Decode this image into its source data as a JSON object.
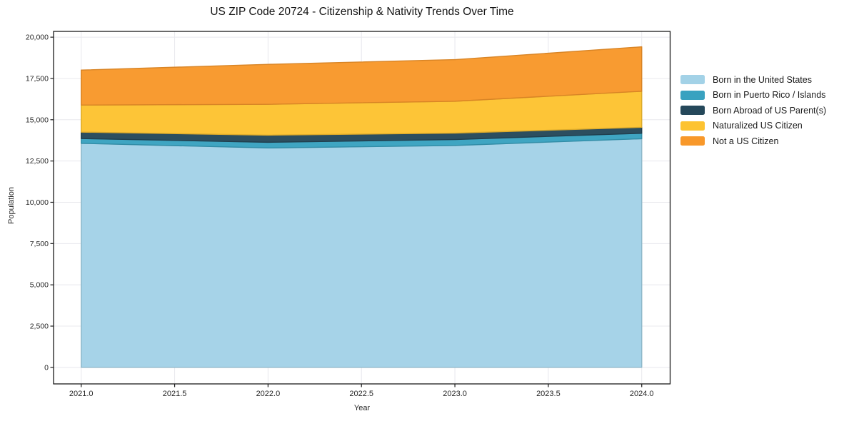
{
  "chart_data": {
    "type": "area",
    "stacked": true,
    "title": "US ZIP Code 20724 - Citizenship & Nativity Trends Over Time",
    "xlabel": "Year",
    "ylabel": "Population",
    "x": [
      2021,
      2022,
      2023,
      2024
    ],
    "series": [
      {
        "id": "born-us",
        "name": "Born in the United States",
        "color": "#a3d2e7",
        "values": [
          13570,
          13290,
          13440,
          13850
        ]
      },
      {
        "id": "born-pr-islands",
        "name": "Born in Puerto Rico / Islands",
        "color": "#39a2c0",
        "values": [
          290,
          345,
          360,
          330
        ]
      },
      {
        "id": "born-abroad",
        "name": "Born Abroad of US Parent(s)",
        "color": "#25485a",
        "values": [
          390,
          430,
          390,
          360
        ]
      },
      {
        "id": "naturalized",
        "name": "Naturalized US Citizen",
        "color": "#fdc331",
        "values": [
          1640,
          1870,
          1930,
          2185
        ]
      },
      {
        "id": "not-citizen",
        "name": "Not a US Citizen",
        "color": "#f8982a",
        "values": [
          2115,
          2420,
          2520,
          2690
        ]
      }
    ],
    "totals": [
      18005,
      18355,
      18640,
      19415
    ],
    "xticks": {
      "values": [
        2021.0,
        2021.5,
        2022.0,
        2022.5,
        2023.0,
        2023.5,
        2024.0
      ],
      "labels": [
        "2021.0",
        "2021.5",
        "2022.0",
        "2022.5",
        "2023.0",
        "2023.5",
        "2024.0"
      ]
    },
    "yticks": {
      "values": [
        0,
        2500,
        5000,
        7500,
        10000,
        12500,
        15000,
        17500,
        20000
      ],
      "labels": [
        "0",
        "2,500",
        "5,000",
        "7,500",
        "10,000",
        "12,500",
        "15,000",
        "17,500",
        "20,000"
      ]
    },
    "xlim": [
      2020.852,
      2024.152
    ],
    "ylim": [
      -1000,
      20350
    ],
    "grid": true,
    "legend_position": "right"
  },
  "colors": {
    "grid": "#e8e8ed",
    "spine": "#1a1a1a",
    "text": "#262626",
    "background": "#ffffff"
  }
}
